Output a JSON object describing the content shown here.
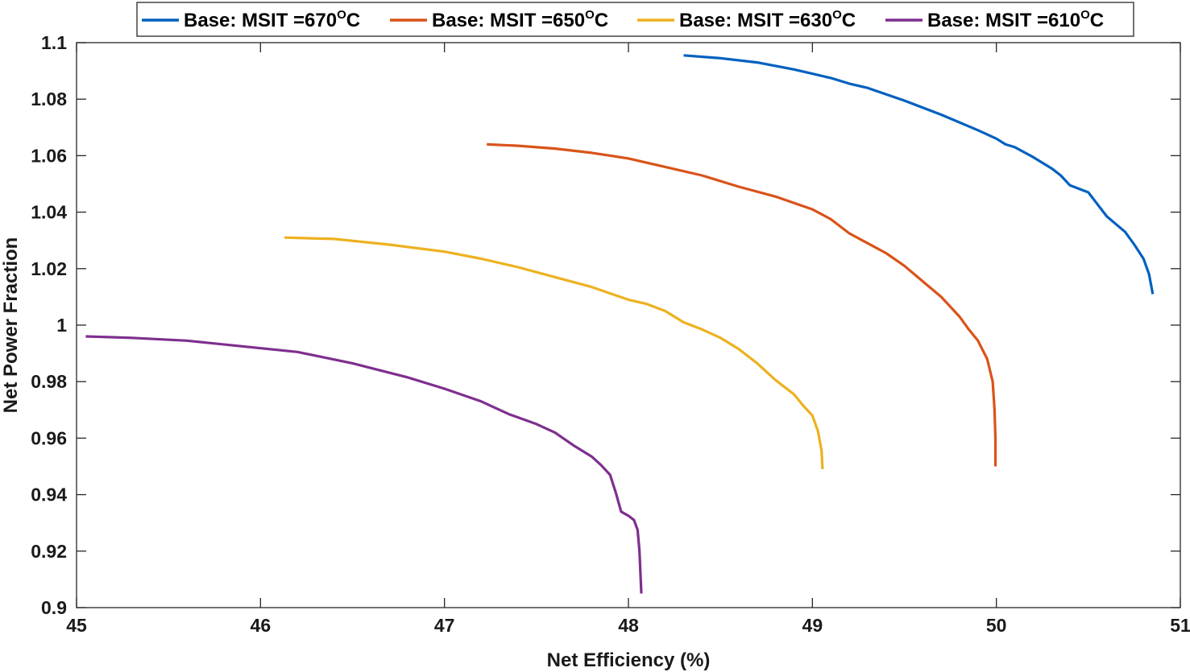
{
  "chart_data": {
    "type": "line",
    "title": "",
    "xlabel": "Net Efficiency (%)",
    "ylabel": "Net Power Fraction",
    "xlim": [
      45,
      51
    ],
    "ylim": [
      0.9,
      1.1
    ],
    "xticks": [
      45,
      46,
      47,
      48,
      49,
      50,
      51
    ],
    "yticks": [
      0.9,
      0.92,
      0.94,
      0.96,
      0.98,
      1,
      1.02,
      1.04,
      1.06,
      1.08,
      1.1
    ],
    "xtick_labels": [
      "45",
      "46",
      "47",
      "48",
      "49",
      "50",
      "51"
    ],
    "ytick_labels": [
      "0.9",
      "0.92",
      "0.94",
      "0.96",
      "0.98",
      "1",
      "1.02",
      "1.04",
      "1.06",
      "1.08",
      "1.1"
    ],
    "grid": false,
    "legend_position": "top-center",
    "legend_orientation": "horizontal",
    "series": [
      {
        "name": "Base: MSIT =670",
        "name_sup": "O",
        "name_suffix": "C",
        "color": "#0060c0",
        "x": [
          48.3,
          48.5,
          48.7,
          48.9,
          49.0,
          49.1,
          49.2,
          49.3,
          49.5,
          49.7,
          49.9,
          50.0,
          50.05,
          50.1,
          50.2,
          50.3,
          50.35,
          50.4,
          50.5,
          50.6,
          50.7,
          50.75,
          50.8,
          50.83,
          50.85
        ],
        "y": [
          1.0955,
          1.0945,
          1.093,
          1.0905,
          1.089,
          1.0875,
          1.0855,
          1.084,
          1.0795,
          1.0745,
          1.069,
          1.066,
          1.064,
          1.063,
          1.0595,
          1.0555,
          1.053,
          1.0495,
          1.047,
          1.0385,
          1.033,
          1.0285,
          1.0235,
          1.018,
          1.011
        ]
      },
      {
        "name": "Base: MSIT =650",
        "name_sup": "O",
        "name_suffix": "C",
        "color": "#d95319",
        "x": [
          47.23,
          47.4,
          47.6,
          47.8,
          48.0,
          48.2,
          48.4,
          48.6,
          48.8,
          49.0,
          49.1,
          49.2,
          49.3,
          49.4,
          49.5,
          49.6,
          49.7,
          49.8,
          49.85,
          49.9,
          49.95,
          49.98,
          49.99,
          49.995,
          49.995
        ],
        "y": [
          1.064,
          1.0635,
          1.0625,
          1.061,
          1.059,
          1.056,
          1.053,
          1.049,
          1.0455,
          1.041,
          1.0375,
          1.0325,
          1.029,
          1.0255,
          1.021,
          1.0155,
          1.01,
          1.003,
          0.9985,
          0.9945,
          0.988,
          0.98,
          0.97,
          0.96,
          0.95
        ]
      },
      {
        "name": "Base: MSIT =630",
        "name_sup": "O",
        "name_suffix": "C",
        "color": "#edb120",
        "x": [
          46.13,
          46.4,
          46.7,
          47.0,
          47.2,
          47.4,
          47.6,
          47.8,
          48.0,
          48.1,
          48.2,
          48.3,
          48.4,
          48.5,
          48.6,
          48.7,
          48.8,
          48.85,
          48.9,
          48.95,
          49.0,
          49.03,
          49.05,
          49.055
        ],
        "y": [
          1.031,
          1.0305,
          1.0285,
          1.026,
          1.0235,
          1.0205,
          1.017,
          1.0135,
          1.009,
          1.0075,
          1.005,
          1.001,
          0.9985,
          0.9955,
          0.9915,
          0.9865,
          0.9805,
          0.978,
          0.9755,
          0.9715,
          0.968,
          0.9625,
          0.9555,
          0.949
        ]
      },
      {
        "name": "Base: MSIT =610",
        "name_sup": "O",
        "name_suffix": "C",
        "color": "#7e2f8e",
        "x": [
          45.05,
          45.3,
          45.6,
          45.9,
          46.2,
          46.5,
          46.8,
          47.0,
          47.2,
          47.35,
          47.5,
          47.6,
          47.7,
          47.8,
          47.85,
          47.9,
          47.93,
          47.96,
          48.0,
          48.03,
          48.05,
          48.06,
          48.07
        ],
        "y": [
          0.996,
          0.9955,
          0.9945,
          0.9925,
          0.9905,
          0.9865,
          0.9815,
          0.9775,
          0.973,
          0.9685,
          0.965,
          0.962,
          0.9575,
          0.9535,
          0.9505,
          0.947,
          0.941,
          0.934,
          0.9325,
          0.931,
          0.9275,
          0.92,
          0.905
        ]
      }
    ]
  }
}
